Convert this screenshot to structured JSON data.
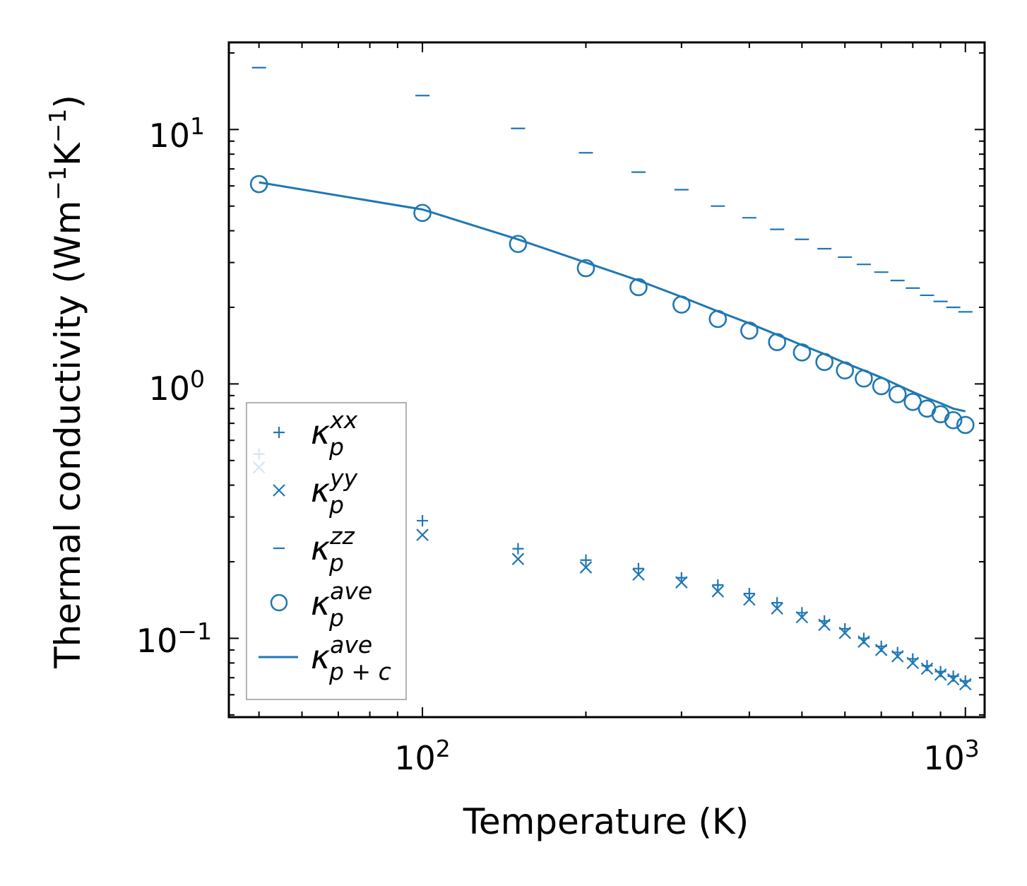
{
  "chart_data": {
    "type": "scatter",
    "xscale": "log",
    "yscale": "log",
    "xlabel": "Temperature (K)",
    "ylabel": {
      "base": "Thermal conductivity (Wm",
      "sup1": "−1",
      "mid": "K",
      "sup2": "−1",
      "end": ")"
    },
    "xlim": [
      44,
      1085
    ],
    "ylim": [
      0.049,
      22
    ],
    "xticks": [
      {
        "value": 100,
        "base": "10",
        "exp": "2"
      },
      {
        "value": 1000,
        "base": "10",
        "exp": "3"
      }
    ],
    "yticks": [
      {
        "value": 0.1,
        "base": "10",
        "exp": "−1"
      },
      {
        "value": 1,
        "base": "10",
        "exp": "0"
      },
      {
        "value": 10,
        "base": "10",
        "exp": "1"
      }
    ],
    "color": "#1f77b4",
    "x": [
      50,
      100,
      150,
      200,
      250,
      300,
      350,
      400,
      450,
      500,
      550,
      600,
      650,
      700,
      750,
      800,
      850,
      900,
      950,
      1000
    ],
    "series": [
      {
        "name": "kappa_p^xx",
        "marker": "plus",
        "label_base": "κ",
        "label_sub": "p",
        "label_sup": "xx",
        "values": [
          0.53,
          0.29,
          0.225,
          0.203,
          0.188,
          0.173,
          0.162,
          0.15,
          0.138,
          0.126,
          0.117,
          0.109,
          0.1,
          0.093,
          0.088,
          0.083,
          0.078,
          0.074,
          0.071,
          0.068
        ]
      },
      {
        "name": "kappa_p^yy",
        "marker": "x",
        "label_base": "κ",
        "label_sub": "p",
        "label_sup": "yy",
        "values": [
          0.47,
          0.255,
          0.205,
          0.19,
          0.178,
          0.166,
          0.153,
          0.142,
          0.131,
          0.121,
          0.113,
          0.105,
          0.097,
          0.09,
          0.085,
          0.08,
          0.076,
          0.072,
          0.069,
          0.066
        ]
      },
      {
        "name": "kappa_p^zz",
        "marker": "hline",
        "label_base": "κ",
        "label_sub": "p",
        "label_sup": "zz",
        "values": [
          17.5,
          13.6,
          10.1,
          8.1,
          6.8,
          5.8,
          5.0,
          4.5,
          4.05,
          3.7,
          3.4,
          3.15,
          2.95,
          2.75,
          2.55,
          2.38,
          2.23,
          2.11,
          2.0,
          1.92
        ]
      },
      {
        "name": "kappa_p^ave",
        "marker": "circle",
        "label_base": "κ",
        "label_sub": "p",
        "label_sup": "ave",
        "values": [
          6.1,
          4.7,
          3.55,
          2.85,
          2.4,
          2.05,
          1.8,
          1.62,
          1.46,
          1.33,
          1.22,
          1.13,
          1.05,
          0.98,
          0.91,
          0.85,
          0.8,
          0.76,
          0.72,
          0.69
        ]
      },
      {
        "name": "kappa_p+c^ave",
        "marker": "line",
        "label_base": "κ",
        "label_sub": "p + c",
        "label_sup": "ave",
        "values": [
          6.2,
          4.85,
          3.7,
          3.0,
          2.55,
          2.2,
          1.93,
          1.73,
          1.56,
          1.42,
          1.31,
          1.21,
          1.13,
          1.06,
          0.99,
          0.93,
          0.88,
          0.84,
          0.8,
          0.78
        ]
      }
    ],
    "legend_position": "lower-left",
    "grid": false
  }
}
